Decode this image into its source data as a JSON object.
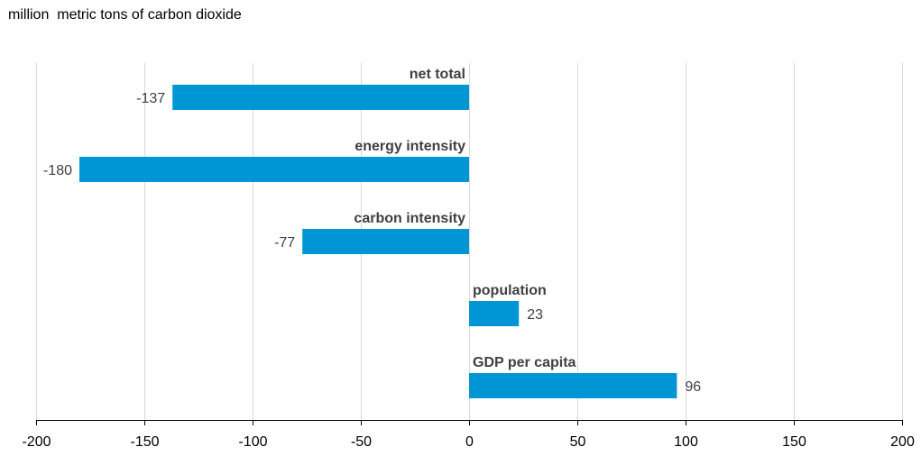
{
  "chart_data": {
    "type": "bar",
    "orientation": "horizontal",
    "title": "",
    "ylabel": "million  metric tons of carbon dioxide",
    "xlabel": "",
    "categories": [
      "net total",
      "energy intensity",
      "carbon intensity",
      "population",
      "GDP per capita"
    ],
    "values": [
      -137,
      -180,
      -77,
      23,
      96
    ],
    "value_labels": [
      "-137",
      "-180",
      "-77",
      "23",
      "96"
    ],
    "xlim": [
      -200,
      200
    ],
    "xticks": [
      -200,
      -150,
      -100,
      -50,
      0,
      50,
      100,
      150,
      200
    ],
    "grid": true,
    "legend": "none",
    "colors": {
      "bar": "#0096D6",
      "grid": "#D9D9D9",
      "axis": "#000000",
      "label": "#404040"
    }
  }
}
